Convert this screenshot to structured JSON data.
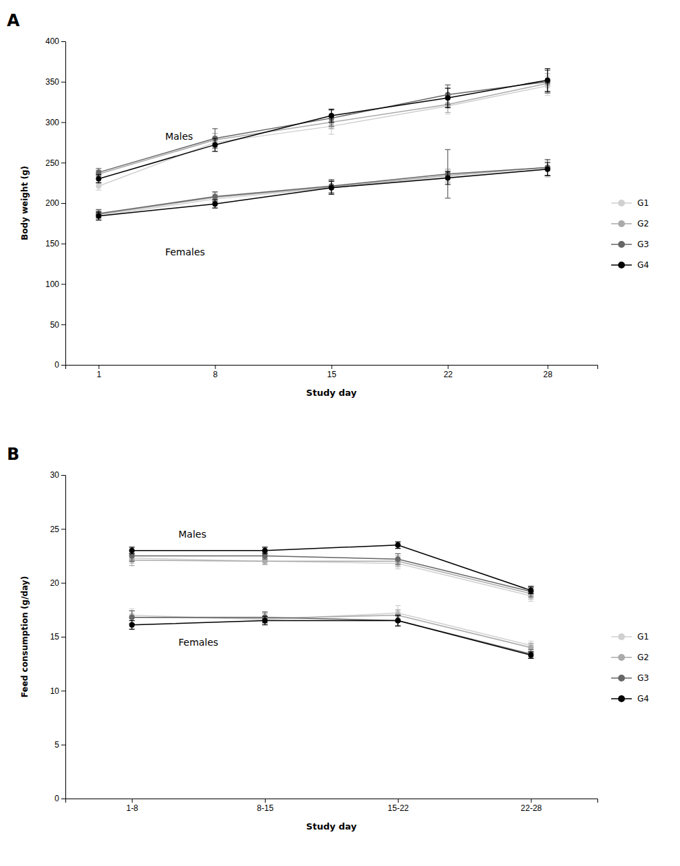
{
  "chart_data": [
    {
      "type": "line",
      "title": "A",
      "x_label": "Study day",
      "y_label": "Body weight (g)",
      "x": [
        1,
        8,
        15,
        22,
        28
      ],
      "xlim": [
        -1,
        31
      ],
      "xticks": [
        1,
        8,
        15,
        22,
        28
      ],
      "ylim": [
        0,
        400
      ],
      "yticks": [
        0,
        50,
        100,
        150,
        200,
        250,
        300,
        350,
        400
      ],
      "grid": false,
      "legend": "right",
      "annotations": [
        {
          "text": "Males",
          "x": 5,
          "y": 278
        },
        {
          "text": "Females",
          "x": 5,
          "y": 135
        }
      ],
      "series": [
        {
          "name": "G1",
          "color": "#d0d0d0",
          "values": [
            221,
            275,
            295,
            320,
            345
          ],
          "errors": [
            5,
            8,
            10,
            10,
            12
          ]
        },
        {
          "name": "G1",
          "color": "#d0d0d0",
          "values": [
            184,
            205,
            219,
            232,
            242
          ],
          "errors": [
            5,
            6,
            8,
            8,
            10
          ]
        },
        {
          "name": "G2",
          "color": "#aaaaaa",
          "values": [
            236,
            278,
            300,
            322,
            348
          ],
          "errors": [
            5,
            8,
            8,
            10,
            12
          ]
        },
        {
          "name": "G2",
          "color": "#aaaaaa",
          "values": [
            186,
            207,
            220,
            234,
            244
          ],
          "errors": [
            5,
            6,
            8,
            8,
            10
          ]
        },
        {
          "name": "G3",
          "color": "#666666",
          "values": [
            238,
            280,
            305,
            334,
            350
          ],
          "errors": [
            5,
            12,
            10,
            12,
            14
          ]
        },
        {
          "name": "G3",
          "color": "#666666",
          "values": [
            187,
            208,
            221,
            236,
            244
          ],
          "errors": [
            5,
            6,
            8,
            30,
            10
          ]
        },
        {
          "name": "G4",
          "color": "#000000",
          "values": [
            230,
            272,
            308,
            330,
            352
          ],
          "errors": [
            5,
            8,
            8,
            12,
            14
          ]
        },
        {
          "name": "G4",
          "color": "#000000",
          "values": [
            184,
            199,
            219,
            231,
            242
          ],
          "errors": [
            5,
            5,
            8,
            8,
            8
          ]
        }
      ]
    },
    {
      "type": "line",
      "title": "B",
      "x_label": "Study day",
      "y_label": "Feed consumption (g/day)",
      "categories": [
        "1-8",
        "8-15",
        "15-22",
        "22-28"
      ],
      "ylim": [
        0,
        30
      ],
      "yticks": [
        0,
        5,
        10,
        15,
        20,
        25,
        30
      ],
      "grid": false,
      "legend": "right",
      "annotations": [
        {
          "text": "Males",
          "x": 0.35,
          "y": 24.2
        },
        {
          "text": "Females",
          "x": 0.35,
          "y": 14.2
        }
      ],
      "series": [
        {
          "name": "G1",
          "color": "#d0d0d0",
          "values": [
            22.3,
            22.0,
            21.8,
            18.8
          ],
          "errors": [
            0.5,
            0.3,
            0.5,
            0.5
          ]
        },
        {
          "name": "G1",
          "color": "#d0d0d0",
          "values": [
            17.0,
            16.6,
            17.2,
            14.2
          ],
          "errors": [
            0.6,
            0.5,
            0.7,
            0.4
          ]
        },
        {
          "name": "G2",
          "color": "#aaaaaa",
          "values": [
            22.1,
            22.0,
            22.0,
            19.0
          ],
          "errors": [
            0.5,
            0.3,
            0.5,
            0.5
          ]
        },
        {
          "name": "G2",
          "color": "#aaaaaa",
          "values": [
            16.8,
            16.7,
            17.0,
            14.0
          ],
          "errors": [
            0.6,
            0.5,
            0.5,
            0.4
          ]
        },
        {
          "name": "G3",
          "color": "#666666",
          "values": [
            22.5,
            22.5,
            22.2,
            19.2
          ],
          "errors": [
            0.5,
            0.3,
            0.5,
            0.5
          ]
        },
        {
          "name": "G3",
          "color": "#666666",
          "values": [
            16.8,
            16.8,
            16.5,
            13.4
          ],
          "errors": [
            0.6,
            0.5,
            0.5,
            0.4
          ]
        },
        {
          "name": "G4",
          "color": "#000000",
          "values": [
            23.0,
            23.0,
            23.5,
            19.3
          ],
          "errors": [
            0.3,
            0.3,
            0.3,
            0.3
          ]
        },
        {
          "name": "G4",
          "color": "#000000",
          "values": [
            16.1,
            16.5,
            16.5,
            13.3
          ],
          "errors": [
            0.4,
            0.4,
            0.5,
            0.3
          ]
        }
      ]
    }
  ]
}
